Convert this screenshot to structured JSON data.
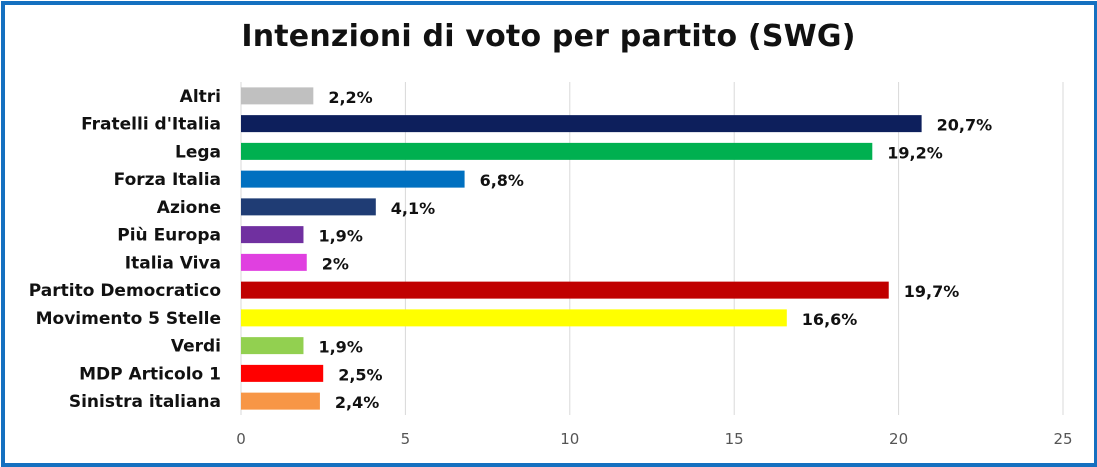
{
  "chart_data": {
    "type": "bar",
    "orientation": "horizontal",
    "title": "Intenzioni di voto per partito (SWG)",
    "categories": [
      "Altri",
      "Fratelli d'Italia",
      "Lega",
      "Forza Italia",
      "Azione",
      "Più Europa",
      "Italia Viva",
      "Partito Democratico",
      "Movimento 5 Stelle",
      "Verdi",
      "MDP Articolo 1",
      "Sinistra italiana"
    ],
    "values": [
      2.2,
      20.7,
      19.2,
      6.8,
      4.1,
      1.9,
      2.0,
      19.7,
      16.6,
      1.9,
      2.5,
      2.4
    ],
    "value_labels": [
      "2,2%",
      "20,7%",
      "19,2%",
      "6,8%",
      "4,1%",
      "1,9%",
      "2%",
      "19,7%",
      "16,6%",
      "1,9%",
      "2,5%",
      "2,4%"
    ],
    "colors": [
      "#c0c0c0",
      "#0d1f5c",
      "#00b050",
      "#0070c0",
      "#1f3c74",
      "#7030a0",
      "#e040e0",
      "#c00000",
      "#ffff00",
      "#92d050",
      "#ff0000",
      "#f79646"
    ],
    "xlim": [
      0,
      25
    ],
    "xticks": [
      "0",
      "5",
      "10",
      "15",
      "20",
      "25"
    ],
    "grid": true,
    "legend": "none"
  }
}
